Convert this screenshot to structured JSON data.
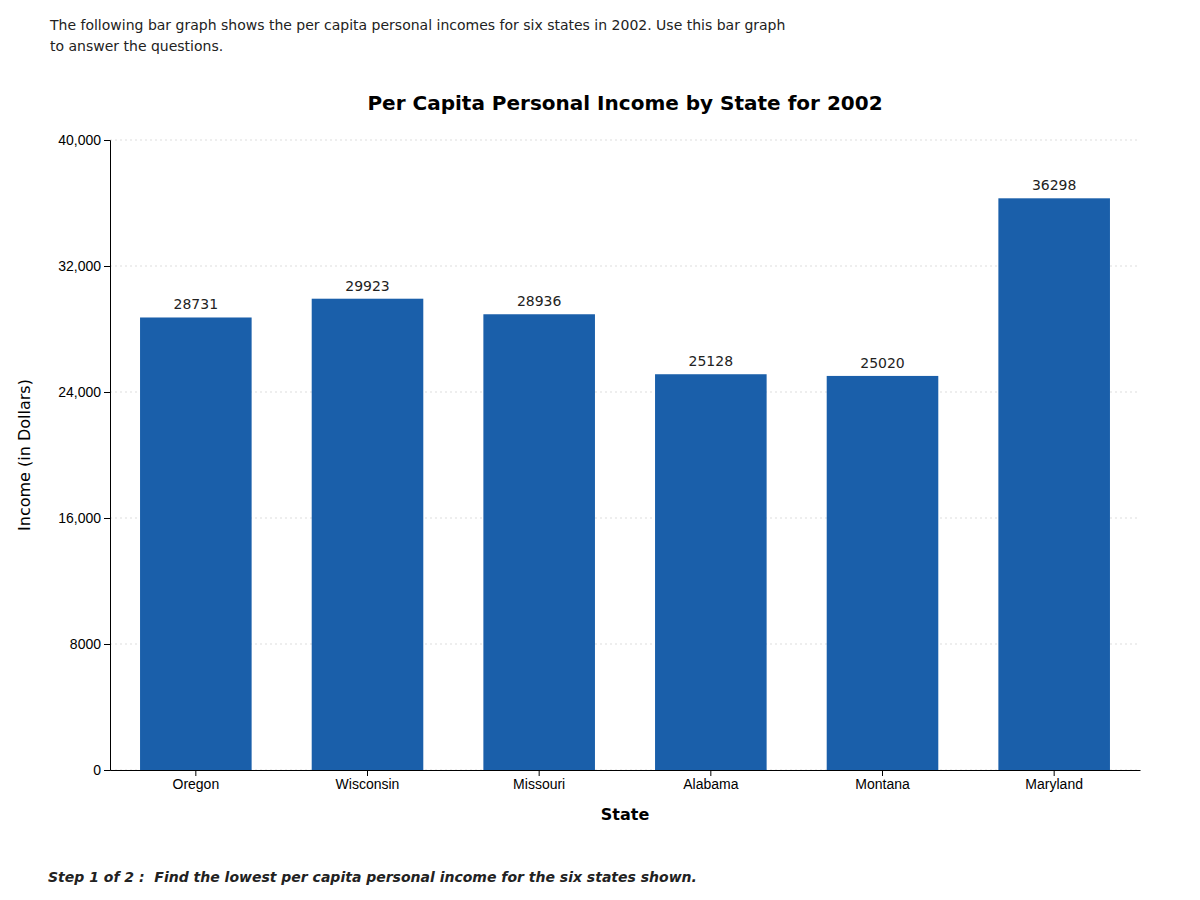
{
  "chart_data": {
    "type": "bar",
    "title": "Per Capita Personal Income by State for 2002",
    "xlabel": "State",
    "ylabel": "Income (in Dollars)",
    "categories": [
      "Oregon",
      "Wisconsin",
      "Missouri",
      "Alabama",
      "Montana",
      "Maryland"
    ],
    "values": [
      28731,
      29923,
      28936,
      25128,
      25020,
      36298
    ],
    "color": "#1a5faa",
    "ylim": [
      0,
      40000
    ],
    "yticks": [
      0,
      8000,
      {
        "value": 16000,
        "label": "16,000"
      },
      {
        "value": 24000,
        "label": "24,000"
      },
      {
        "value": 32000,
        "label": "32,000"
      },
      {
        "value": 40000,
        "label": "40,000"
      }
    ],
    "grid": true,
    "data_labels": true,
    "annotations": [
      "The following bar graph shows the per capita personal incomes for six states in 2002. Use this bar graph\nto answer the questions.",
      "Step 1 of 2 :  Find the lowest per capita personal income for the six states shown."
    ]
  }
}
